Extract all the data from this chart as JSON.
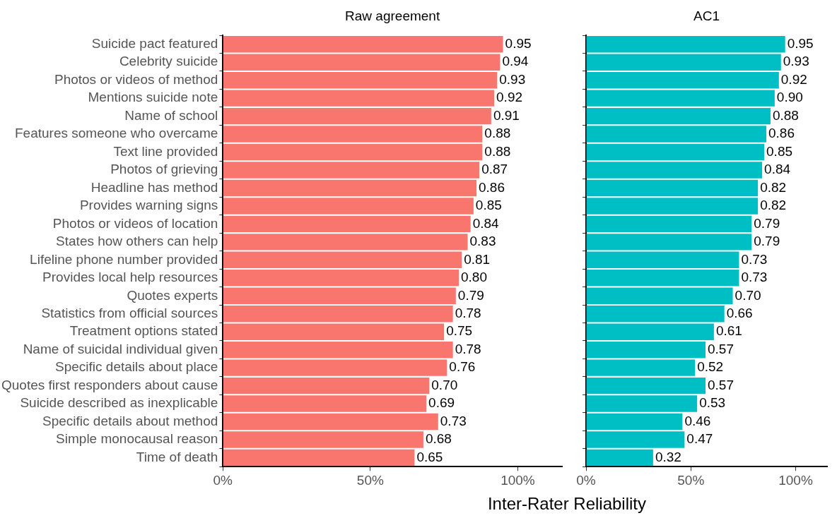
{
  "chart_data": [
    {
      "type": "bar",
      "orientation": "horizontal",
      "title": "Raw agreement",
      "xlabel": "Inter-Rater Reliability",
      "categories": [
        "Suicide pact featured",
        "Celebrity suicide",
        "Photos or videos of method",
        "Mentions suicide note",
        "Name of school",
        "Features someone who overcame",
        "Text line provided",
        "Photos of grieving",
        "Headline has method",
        "Provides warning signs",
        "Photos or videos of location",
        "States how others can help",
        "Lifeline phone number provided",
        "Provides local help resources",
        "Quotes experts",
        "Statistics from official sources",
        "Treatment options stated",
        "Name of suicidal individual given",
        "Specific details about place",
        "Quotes first responders about cause",
        "Suicide described as inexplicable",
        "Specific details about method",
        "Simple monocausal reason",
        "Time of death"
      ],
      "values": [
        0.95,
        0.94,
        0.93,
        0.92,
        0.91,
        0.88,
        0.88,
        0.87,
        0.86,
        0.85,
        0.84,
        0.83,
        0.81,
        0.8,
        0.79,
        0.78,
        0.75,
        0.78,
        0.76,
        0.7,
        0.69,
        0.73,
        0.68,
        0.65
      ],
      "value_labels": [
        "0.95",
        "0.94",
        "0.93",
        "0.92",
        "0.91",
        "0.88",
        "0.88",
        "0.87",
        "0.86",
        "0.85",
        "0.84",
        "0.83",
        "0.81",
        "0.80",
        "0.79",
        "0.78",
        "0.75",
        "0.78",
        "0.76",
        "0.70",
        "0.69",
        "0.73",
        "0.68",
        "0.65"
      ],
      "color": "#f8766d",
      "xlim": [
        0,
        1.15
      ],
      "xticks": [
        {
          "value": 0,
          "label": "0%"
        },
        {
          "value": 0.5,
          "label": "50%"
        },
        {
          "value": 1,
          "label": "100%"
        }
      ],
      "grid": false,
      "legend": false
    },
    {
      "type": "bar",
      "orientation": "horizontal",
      "title": "AC1",
      "values": [
        0.95,
        0.93,
        0.92,
        0.9,
        0.88,
        0.86,
        0.85,
        0.84,
        0.82,
        0.82,
        0.79,
        0.79,
        0.73,
        0.73,
        0.7,
        0.66,
        0.61,
        0.57,
        0.52,
        0.57,
        0.53,
        0.46,
        0.47,
        0.32
      ],
      "value_labels": [
        "0.95",
        "0.93",
        "0.92",
        "0.90",
        "0.88",
        "0.86",
        "0.85",
        "0.84",
        "0.82",
        "0.82",
        "0.79",
        "0.79",
        "0.73",
        "0.73",
        "0.70",
        "0.66",
        "0.61",
        "0.57",
        "0.52",
        "0.57",
        "0.53",
        "0.46",
        "0.47",
        "0.32"
      ],
      "color": "#00bfc4",
      "xlim": [
        0,
        1.15
      ],
      "xticks": [
        {
          "value": 0,
          "label": "0%"
        },
        {
          "value": 0.5,
          "label": "50%"
        },
        {
          "value": 1,
          "label": "100%"
        }
      ],
      "grid": false,
      "legend": false,
      "tick_labels": "x"
    }
  ]
}
